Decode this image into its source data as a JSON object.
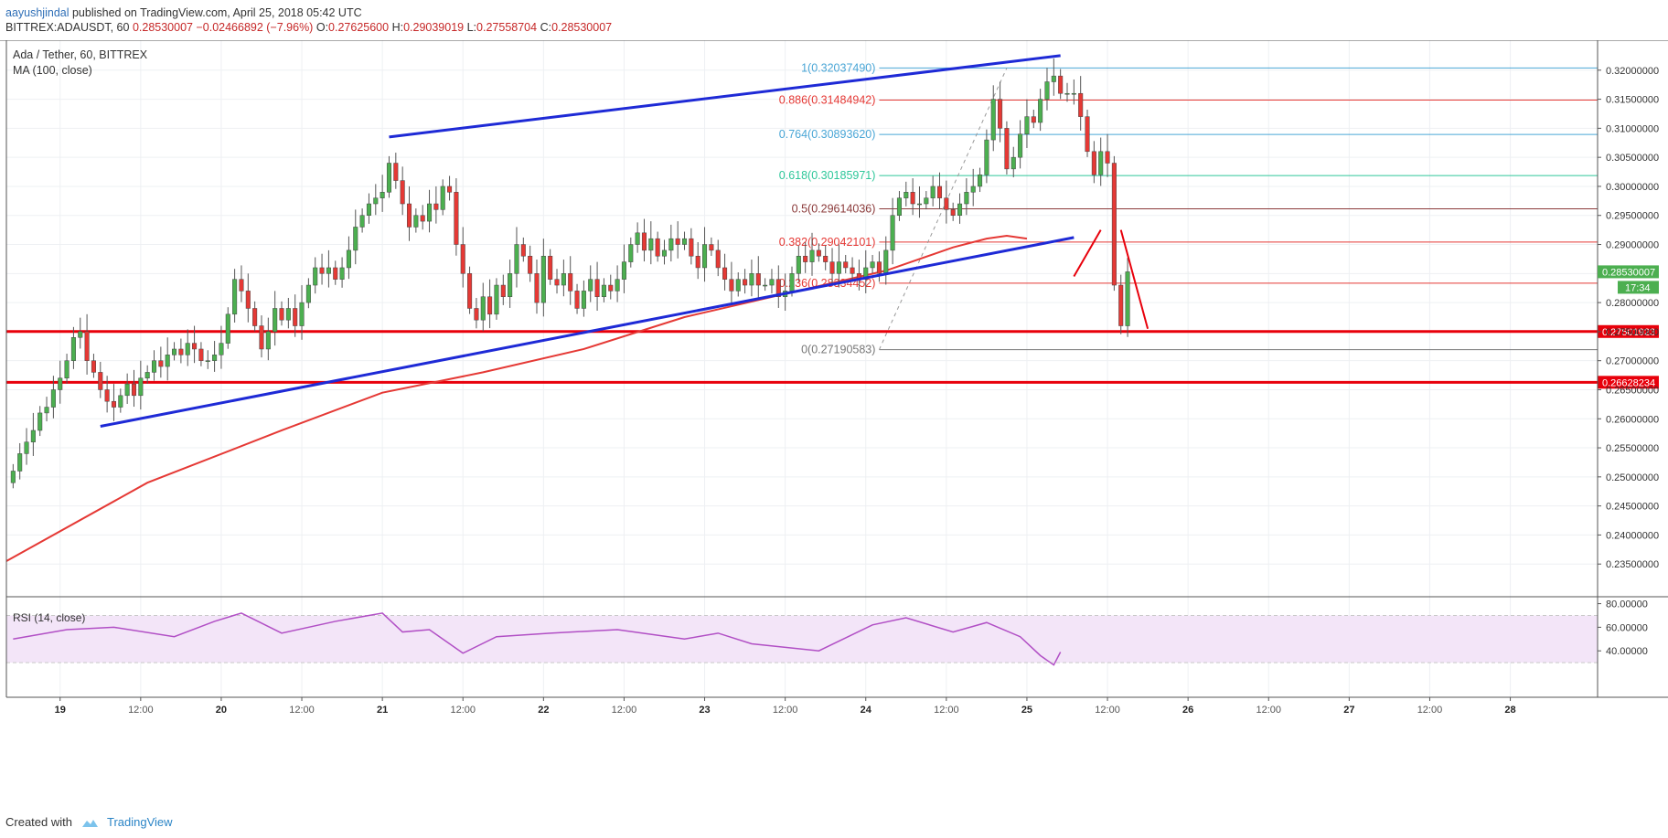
{
  "header": {
    "author": "aayushjindal",
    "published": "published on TradingView.com, April 25, 2018 05:42 UTC",
    "symbol": "BITTREX:ADAUSDT, 60",
    "last": "0.28530007",
    "change": "−0.02466892 (−7.96%)",
    "open_label": "O:",
    "open": "0.27625600",
    "high_label": "H:",
    "high": "0.29039019",
    "low_label": "L:",
    "low": "0.27558704",
    "close_label": "C:",
    "close": "0.28530007"
  },
  "legend": {
    "title": "Ada / Tether, 60, BITTREX",
    "ma": "MA (100, close)",
    "rsi": "RSI (14, close)"
  },
  "footer": {
    "created_with": "Created with",
    "brand": "TradingView"
  },
  "colors": {
    "up": "#4caf50",
    "down": "#e53935",
    "ma": "#e53935",
    "trend": "#1e2ad6",
    "support": "#e8000b",
    "rsi": "#b14fc5",
    "rsi_band": "#f3e5f8",
    "fib_blue": "#4aa6d6",
    "fib_red": "#e53935",
    "fib_green": "#2ec79a",
    "fib_brown": "#8b3a3a",
    "fib_gray": "#777777"
  },
  "chart_data": {
    "type": "candlestick",
    "title": "Ada / Tether, 60, BITTREX",
    "ylim": [
      0.23,
      0.325
    ],
    "price_ticks": [
      0.235,
      0.24,
      0.245,
      0.25,
      0.255,
      0.26,
      0.265,
      0.27,
      0.275,
      0.28,
      0.285,
      0.29,
      0.295,
      0.3,
      0.305,
      0.31,
      0.315,
      0.32
    ],
    "price_tick_labels": [
      "0.23500000",
      "0.24000000",
      "0.24500000",
      "0.25000000",
      "0.25500000",
      "0.26000000",
      "0.26500000",
      "0.27000000",
      "0.27500000",
      "0.28000000",
      "0.28500000",
      "0.29000000",
      "0.29500000",
      "0.30000000",
      "0.30500000",
      "0.31000000",
      "0.31500000",
      "0.32000000"
    ],
    "time_ticks": [
      {
        "label": "19",
        "t": 7,
        "bold": true
      },
      {
        "label": "12:00",
        "t": 19
      },
      {
        "label": "20",
        "t": 31,
        "bold": true
      },
      {
        "label": "12:00",
        "t": 43
      },
      {
        "label": "21",
        "t": 55,
        "bold": true
      },
      {
        "label": "12:00",
        "t": 67
      },
      {
        "label": "22",
        "t": 79,
        "bold": true
      },
      {
        "label": "12:00",
        "t": 91
      },
      {
        "label": "23",
        "t": 103,
        "bold": true
      },
      {
        "label": "12:00",
        "t": 115
      },
      {
        "label": "24",
        "t": 127,
        "bold": true
      },
      {
        "label": "12:00",
        "t": 139
      },
      {
        "label": "25",
        "t": 151,
        "bold": true
      },
      {
        "label": "12:00",
        "t": 163
      },
      {
        "label": "26",
        "t": 175,
        "bold": true
      },
      {
        "label": "12:00",
        "t": 187
      },
      {
        "label": "27",
        "t": 199,
        "bold": true
      },
      {
        "label": "12:00",
        "t": 211
      },
      {
        "label": "28",
        "t": 223,
        "bold": true
      }
    ],
    "t_range": [
      -1,
      236
    ],
    "closes": [
      0.251,
      0.254,
      0.256,
      0.258,
      0.261,
      0.262,
      0.265,
      0.267,
      0.27,
      0.274,
      0.275,
      0.27,
      0.268,
      0.265,
      0.263,
      0.262,
      0.264,
      0.266,
      0.264,
      0.267,
      0.268,
      0.27,
      0.269,
      0.271,
      0.272,
      0.271,
      0.273,
      0.272,
      0.27,
      0.27,
      0.271,
      0.273,
      0.278,
      0.284,
      0.282,
      0.279,
      0.276,
      0.272,
      0.275,
      0.279,
      0.277,
      0.279,
      0.276,
      0.28,
      0.283,
      0.286,
      0.285,
      0.286,
      0.284,
      0.286,
      0.289,
      0.293,
      0.295,
      0.297,
      0.298,
      0.299,
      0.304,
      0.301,
      0.297,
      0.293,
      0.295,
      0.294,
      0.297,
      0.296,
      0.3,
      0.299,
      0.29,
      0.285,
      0.279,
      0.277,
      0.281,
      0.278,
      0.283,
      0.281,
      0.285,
      0.29,
      0.288,
      0.285,
      0.28,
      0.288,
      0.284,
      0.283,
      0.285,
      0.282,
      0.279,
      0.282,
      0.284,
      0.281,
      0.283,
      0.282,
      0.284,
      0.287,
      0.29,
      0.292,
      0.289,
      0.291,
      0.288,
      0.289,
      0.291,
      0.29,
      0.291,
      0.288,
      0.286,
      0.29,
      0.289,
      0.286,
      0.284,
      0.282,
      0.284,
      0.283,
      0.285,
      0.283,
      0.283,
      0.284,
      0.281,
      0.282,
      0.285,
      0.288,
      0.287,
      0.289,
      0.288,
      0.287,
      0.285,
      0.287,
      0.286,
      0.285,
      0.284,
      0.286,
      0.287,
      0.285,
      0.289,
      0.295,
      0.298,
      0.299,
      0.297,
      0.297,
      0.298,
      0.3,
      0.298,
      0.296,
      0.295,
      0.297,
      0.299,
      0.3,
      0.302,
      0.308,
      0.315,
      0.31,
      0.303,
      0.305,
      0.309,
      0.312,
      0.311,
      0.315,
      0.318,
      0.319,
      0.316,
      0.316,
      0.316,
      0.312,
      0.306,
      0.302,
      0.306,
      0.304,
      0.283,
      0.276,
      0.2853
    ],
    "series": [
      {
        "name": "MA (100, close)",
        "t": [
          -1,
          20,
          40,
          55,
          70,
          85,
          100,
          115,
          130,
          140,
          145,
          148,
          151
        ],
        "values": [
          0.2355,
          0.249,
          0.258,
          0.2645,
          0.268,
          0.272,
          0.2775,
          0.2815,
          0.2855,
          0.2895,
          0.291,
          0.2915,
          0.291
        ]
      },
      {
        "name": "RSI (14, close)",
        "t": [
          0,
          8,
          15,
          24,
          30,
          34,
          40,
          48,
          55,
          58,
          62,
          67,
          72,
          80,
          90,
          100,
          105,
          110,
          120,
          128,
          133,
          140,
          145,
          150,
          153,
          155,
          156
        ],
        "values": [
          50,
          58,
          60,
          52,
          65,
          72,
          55,
          65,
          72,
          56,
          58,
          38,
          52,
          55,
          58,
          50,
          55,
          46,
          40,
          62,
          68,
          56,
          64,
          52,
          36,
          28,
          39
        ],
        "ylim": [
          20,
          82
        ],
        "ticks": [
          40,
          60,
          80
        ],
        "tick_labels": [
          "40.00000",
          "60.00000",
          "80.00000"
        ],
        "band": [
          30,
          70
        ]
      }
    ],
    "trendlines": [
      {
        "t1": 56,
        "p1": 0.3085,
        "t2": 156,
        "p2": 0.3225
      },
      {
        "t1": 13,
        "p1": 0.2587,
        "t2": 158,
        "p2": 0.2912
      }
    ],
    "support_levels": [
      {
        "price": 0.27501923,
        "label": "0.27501923"
      },
      {
        "price": 0.26628234,
        "label": "0.26628234"
      }
    ],
    "current_price": {
      "price": 0.2853,
      "label": "0.28530007",
      "countdown": "17:34"
    },
    "fib_start_t": 129,
    "fib_levels": [
      {
        "label": "1(0.32037490)",
        "price": 0.3203749,
        "color": "blue"
      },
      {
        "label": "0.886(0.31484942)",
        "price": 0.31484942,
        "color": "red"
      },
      {
        "label": "0.764(0.30893620)",
        "price": 0.3089362,
        "color": "blue"
      },
      {
        "label": "0.618(0.30185971)",
        "price": 0.30185971,
        "color": "green"
      },
      {
        "label": "0.5(0.29614036)",
        "price": 0.29614036,
        "color": "brown"
      },
      {
        "label": "0.382(0.29042101)",
        "price": 0.29042101,
        "color": "red"
      },
      {
        "label": "0.236(0.28334452)",
        "price": 0.28334452,
        "color": "red"
      },
      {
        "label": "0(0.27190583)",
        "price": 0.27190583,
        "color": "gray"
      }
    ],
    "projection": [
      {
        "t1": 158,
        "p1": 0.2845,
        "t2": 162,
        "p2": 0.2925
      },
      {
        "t1": 165,
        "p1": 0.2925,
        "t2": 169,
        "p2": 0.2755
      }
    ]
  }
}
